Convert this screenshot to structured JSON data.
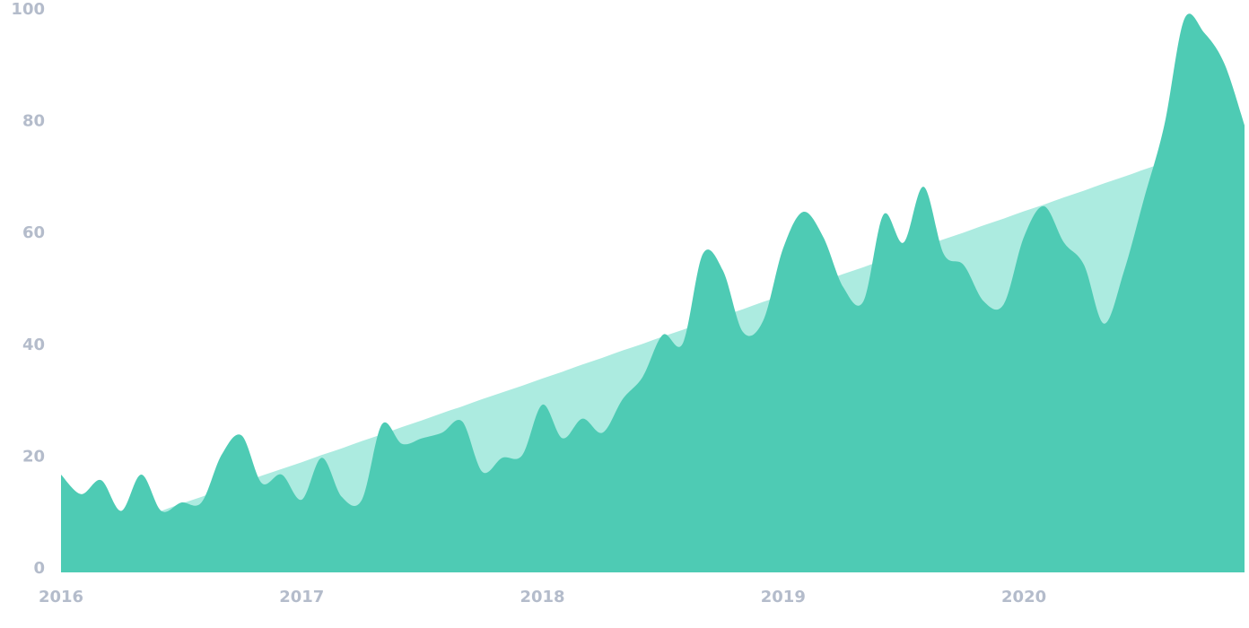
{
  "chart_data": {
    "type": "area",
    "categories": [
      "2016",
      null,
      null,
      null,
      null,
      null,
      null,
      null,
      null,
      null,
      null,
      null,
      "2017",
      null,
      null,
      null,
      null,
      null,
      null,
      null,
      null,
      null,
      null,
      null,
      "2018",
      null,
      null,
      null,
      null,
      null,
      null,
      null,
      null,
      null,
      null,
      null,
      "2019",
      null,
      null,
      null,
      null,
      null,
      null,
      null,
      null,
      null,
      null,
      null,
      "2020",
      null,
      null,
      null,
      null,
      null,
      null,
      null,
      null,
      null,
      null,
      null
    ],
    "series": [
      {
        "color": "#acebe0",
        "values": [
          4.8,
          6.0,
          7.3,
          8.5,
          9.8,
          11.0,
          12.3,
          13.5,
          14.8,
          16.0,
          17.3,
          18.5,
          19.7,
          21.0,
          22.2,
          23.5,
          24.7,
          26.0,
          27.2,
          28.5,
          29.7,
          31.0,
          32.2,
          33.4,
          34.7,
          35.9,
          37.2,
          38.4,
          39.7,
          40.9,
          42.2,
          43.4,
          44.7,
          45.9,
          47.1,
          48.4,
          49.6,
          50.9,
          52.1,
          53.4,
          54.6,
          55.9,
          57.1,
          58.4,
          59.6,
          60.8,
          62.1,
          63.3,
          64.6,
          65.8,
          67.1,
          68.3,
          69.6,
          70.8,
          72.1,
          73.3,
          74.5,
          75.8,
          77.0,
          78.3
        ]
      },
      {
        "color": "#4ecbb4",
        "values": [
          17.5,
          14,
          16.5,
          11,
          17.5,
          11,
          12.5,
          12.5,
          21,
          24.5,
          16,
          17.5,
          13,
          20.5,
          13.5,
          13,
          26.5,
          23,
          24,
          25,
          27,
          18,
          20.5,
          21,
          30,
          24,
          27.5,
          25,
          31,
          35,
          42.5,
          41,
          57,
          54,
          43,
          45,
          58,
          64.5,
          60,
          51,
          48.5,
          64,
          59,
          69,
          57,
          55,
          48.5,
          48,
          60,
          65.5,
          59,
          55,
          44.5,
          54,
          67,
          80,
          99,
          96.5,
          91,
          80
        ]
      }
    ],
    "ylim": [
      0,
      100
    ],
    "yticks": [
      0,
      20,
      40,
      60,
      80,
      100
    ]
  }
}
